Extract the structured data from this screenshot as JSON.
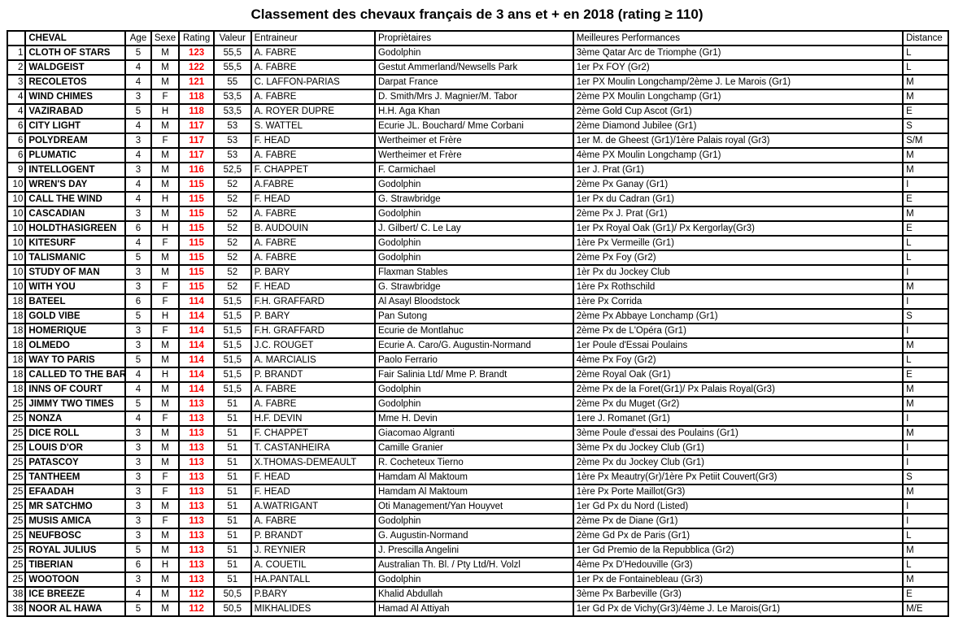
{
  "title": "Classement des chevaux français de 3 ans et + en 2018 (rating ≥ 110)",
  "colors": {
    "rating": "#ff0000",
    "border": "#000000",
    "background": "#ffffff"
  },
  "table": {
    "headers": [
      "",
      "CHEVAL",
      "Age",
      "Sexe",
      "Rating",
      "Valeur",
      "Entraineur",
      "Propriètaires",
      "Meilleures Performances",
      "Distance"
    ],
    "rows": [
      [
        "1",
        "CLOTH OF STARS",
        "5",
        "M",
        "123",
        "55,5",
        "A. FABRE",
        "Godolphin",
        "3ème Qatar Arc de Triomphe (Gr1)",
        "L"
      ],
      [
        "2",
        "WALDGEIST",
        "4",
        "M",
        "122",
        "55,5",
        "A. FABRE",
        "Gestut Ammerland/Newsells Park",
        "1er Px FOY (Gr2)",
        "L"
      ],
      [
        "3",
        "RECOLETOS",
        "4",
        "M",
        "121",
        "55",
        "C. LAFFON-PARIAS",
        "Darpat France",
        "1er PX Moulin Longchamp/2ème J. Le Marois (Gr1)",
        "M"
      ],
      [
        "4",
        "WIND CHIMES",
        "3",
        "F",
        "118",
        "53,5",
        "A. FABRE",
        "D. Smith/Mrs J. Magnier/M. Tabor",
        "2ème PX Moulin Longchamp (Gr1)",
        "M"
      ],
      [
        "4",
        "VAZIRABAD",
        "5",
        "H",
        "118",
        "53,5",
        "A. ROYER DUPRE",
        "H.H. Aga Khan",
        "2ème Gold Cup Ascot (Gr1)",
        "E"
      ],
      [
        "6",
        "CITY LIGHT",
        "4",
        "M",
        "117",
        "53",
        "S. WATTEL",
        "Ecurie JL. Bouchard/ Mme Corbani",
        "2ème Diamond Jubilee (Gr1)",
        "S"
      ],
      [
        "6",
        "POLYDREAM",
        "3",
        "F",
        "117",
        "53",
        "F. HEAD",
        "Wertheimer et Frère",
        "1er M. de Gheest (Gr1)/1ère Palais royal (Gr3)",
        "S/M"
      ],
      [
        "6",
        "PLUMATIC",
        "4",
        "M",
        "117",
        "53",
        "A. FABRE",
        "Wertheimer et Frère",
        "4ème PX Moulin Longchamp (Gr1)",
        "M"
      ],
      [
        "9",
        "INTELLOGENT",
        "3",
        "M",
        "116",
        "52,5",
        "F. CHAPPET",
        "F. Carmichael",
        "1er J. Prat (Gr1)",
        "M"
      ],
      [
        "10",
        "WREN'S DAY",
        "4",
        "M",
        "115",
        "52",
        "A.FABRE",
        "Godolphin",
        "2ème Px Ganay (Gr1)",
        "I"
      ],
      [
        "10",
        "CALL THE WIND",
        "4",
        "H",
        "115",
        "52",
        "F. HEAD",
        "G. Strawbridge",
        "1er Px du Cadran (Gr1)",
        "E"
      ],
      [
        "10",
        "CASCADIAN",
        "3",
        "M",
        "115",
        "52",
        "A. FABRE",
        "Godolphin",
        "2ème Px J. Prat (Gr1)",
        "M"
      ],
      [
        "10",
        "HOLDTHASIGREEN",
        "6",
        "H",
        "115",
        "52",
        "B. AUDOUIN",
        "J. Gilbert/ C. Le Lay",
        "1er Px Royal Oak (Gr1)/ Px Kergorlay(Gr3)",
        "E"
      ],
      [
        "10",
        "KITESURF",
        "4",
        "F",
        "115",
        "52",
        "A. FABRE",
        "Godolphin",
        "1ère Px Vermeille (Gr1)",
        "L"
      ],
      [
        "10",
        "TALISMANIC",
        "5",
        "M",
        "115",
        "52",
        "A. FABRE",
        "Godolphin",
        "2ème Px Foy (Gr2)",
        "L"
      ],
      [
        "10",
        "STUDY OF MAN",
        "3",
        "M",
        "115",
        "52",
        "P. BARY",
        "Flaxman Stables",
        "1èr Px du Jockey Club",
        "I"
      ],
      [
        "10",
        "WITH YOU",
        "3",
        "F",
        "115",
        "52",
        "F. HEAD",
        "G. Strawbridge",
        "1ère Px Rothschild",
        "M"
      ],
      [
        "18",
        "BATEEL",
        "6",
        "F",
        "114",
        "51,5",
        "F.H. GRAFFARD",
        "Al Asayl Bloodstock",
        "1ère Px Corrida",
        "I"
      ],
      [
        "18",
        "GOLD VIBE",
        "5",
        "H",
        "114",
        "51,5",
        "P. BARY",
        "Pan Sutong",
        "2ème Px Abbaye Lonchamp (Gr1)",
        "S"
      ],
      [
        "18",
        "HOMERIQUE",
        "3",
        "F",
        "114",
        "51,5",
        "F.H. GRAFFARD",
        "Ecurie de Montlahuc",
        "2ème Px de L'Opéra (Gr1)",
        "I"
      ],
      [
        "18",
        "OLMEDO",
        "3",
        "M",
        "114",
        "51,5",
        "J.C. ROUGET",
        "Ecurie A. Caro/G. Augustin-Normand",
        "1er Poule d'Essai Poulains",
        "M"
      ],
      [
        "18",
        "WAY TO PARIS",
        "5",
        "M",
        "114",
        "51,5",
        "A. MARCIALIS",
        "Paolo Ferrario",
        "4ème Px Foy (Gr2)",
        "L"
      ],
      [
        "18",
        "CALLED TO THE BAR",
        "4",
        "H",
        "114",
        "51,5",
        "P. BRANDT",
        "Fair Salinia Ltd/ Mme P. Brandt",
        "2ème Royal Oak (Gr1)",
        "E"
      ],
      [
        "18",
        "INNS OF COURT",
        "4",
        "M",
        "114",
        "51,5",
        "A. FABRE",
        "Godolphin",
        "2ème Px de la Foret(Gr1)/ Px Palais Royal(Gr3)",
        "M"
      ],
      [
        "25",
        "JIMMY TWO TIMES",
        "5",
        "M",
        "113",
        "51",
        "A. FABRE",
        "Godolphin",
        "2ème Px du Muget (Gr2)",
        "M"
      ],
      [
        "25",
        "NONZA",
        "4",
        "F",
        "113",
        "51",
        "H.F. DEVIN",
        "Mme H. Devin",
        "1ere J. Romanet (Gr1)",
        "I"
      ],
      [
        "25",
        "DICE ROLL",
        "3",
        "M",
        "113",
        "51",
        "F. CHAPPET",
        "Giacomao Algranti",
        "3ème Poule d'essai des Poulains (Gr1)",
        "M"
      ],
      [
        "25",
        "LOUIS D'OR",
        "3",
        "M",
        "113",
        "51",
        "T. CASTANHEIRA",
        "Camille Granier",
        "3ème Px du Jockey Club (Gr1)",
        "I"
      ],
      [
        "25",
        "PATASCOY",
        "3",
        "M",
        "113",
        "51",
        "X.THOMAS-DEMEAULT",
        "R. Cocheteux Tierno",
        "2ème Px du Jockey Club (Gr1)",
        "I"
      ],
      [
        "25",
        "TANTHEEM",
        "3",
        "F",
        "113",
        "51",
        "F. HEAD",
        "Hamdam Al Maktoum",
        "1ère Px Meautry(Gr)/1ère Px Petiit Couvert(Gr3)",
        "S"
      ],
      [
        "25",
        "EFAADAH",
        "3",
        "F",
        "113",
        "51",
        "F. HEAD",
        "Hamdam Al Maktoum",
        "1ère Px Porte Maillot(Gr3)",
        "M"
      ],
      [
        "25",
        "MR SATCHMO",
        "3",
        "M",
        "113",
        "51",
        "A.WATRIGANT",
        "Oti Management/Yan Houyvet",
        "1er Gd Px du Nord (Listed)",
        "I"
      ],
      [
        "25",
        "MUSIS AMICA",
        "3",
        "F",
        "113",
        "51",
        "A. FABRE",
        "Godolphin",
        "2ème Px de Diane (Gr1)",
        "I"
      ],
      [
        "25",
        "NEUFBOSC",
        "3",
        "M",
        "113",
        "51",
        "P. BRANDT",
        "G. Augustin-Normand",
        "2ème Gd Px de Paris (Gr1)",
        "L"
      ],
      [
        "25",
        "ROYAL JULIUS",
        "5",
        "M",
        "113",
        "51",
        "J. REYNIER",
        "J. Prescilla Angelini",
        "1er Gd Premio de la Repubblica (Gr2)",
        "M"
      ],
      [
        "25",
        "TIBERIAN",
        "6",
        "H",
        "113",
        "51",
        "A. COUETIL",
        "Australian Th. Bl. / Pty Ltd/H. Volzl",
        "4ème Px D'Hedouville (Gr3)",
        "L"
      ],
      [
        "25",
        "WOOTOON",
        "3",
        "M",
        "113",
        "51",
        "HA.PANTALL",
        "Godolphin",
        "1er Px de Fontainebleau (Gr3)",
        "M"
      ],
      [
        "38",
        "ICE BREEZE",
        "4",
        "M",
        "112",
        "50,5",
        "P.BARY",
        "Khalid Abdullah",
        "3ème Px Barbeville (Gr3)",
        "E"
      ],
      [
        "38",
        "NOOR AL HAWA",
        "5",
        "M",
        "112",
        "50,5",
        "MIKHALIDES",
        "Hamad Al Attiyah",
        "1er Gd Px de Vichy(Gr3)/4ème J. Le Marois(Gr1)",
        "M/E"
      ]
    ]
  }
}
